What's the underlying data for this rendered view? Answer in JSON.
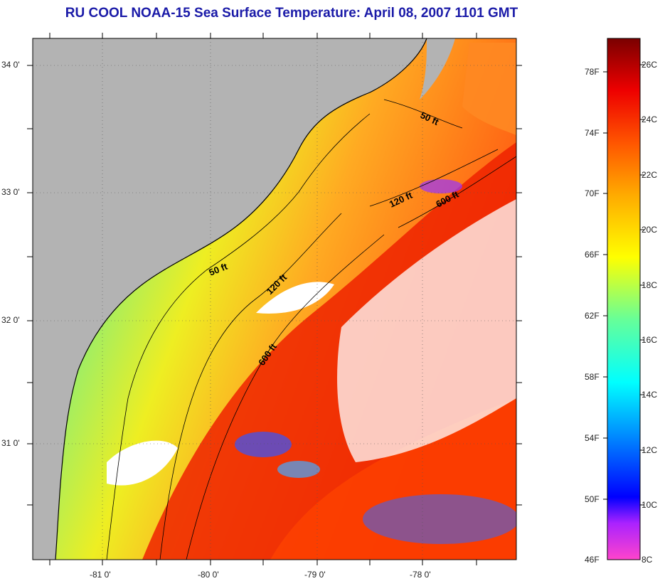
{
  "title": "RU COOL  NOAA-15  Sea Surface Temperature:  April 08, 2007 1101 GMT",
  "map": {
    "lat_labels": [
      "34 0'",
      "33 0'",
      "32 0'",
      "31 0'"
    ],
    "lon_labels": [
      "-81 0'",
      "-80 0'",
      "-79 0'",
      "-78 0'"
    ],
    "contour_labels": [
      {
        "text": "50 ft",
        "rotate": 25
      },
      {
        "text": "120 ft",
        "rotate": -25
      },
      {
        "text": "600 ft",
        "rotate": -28
      },
      {
        "text": "50 ft",
        "rotate": -22
      },
      {
        "text": "120 ft",
        "rotate": -45
      },
      {
        "text": "600 ft",
        "rotate": -55
      }
    ],
    "colors": {
      "land": "#b3b3b3",
      "cloud": "#ffffff",
      "coast": "#000000"
    }
  },
  "colorbar": {
    "fahrenheit_labels": [
      "78F",
      "74F",
      "70F",
      "66F",
      "62F",
      "58F",
      "54F",
      "50F",
      "46F"
    ],
    "celsius_labels": [
      "26C",
      "24C",
      "22C",
      "20C",
      "18C",
      "16C",
      "14C",
      "12C",
      "10C",
      "8C"
    ],
    "range_c": [
      8,
      27
    ]
  }
}
